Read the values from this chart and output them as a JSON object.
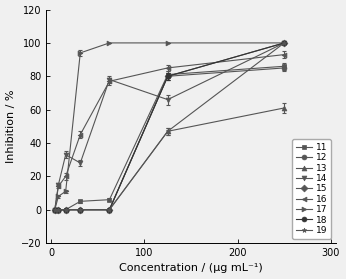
{
  "title": "",
  "xlabel": "Concentration / (μg mL⁻¹)",
  "ylabel": "Inhibition / %",
  "xlim": [
    -5,
    305
  ],
  "ylim": [
    -20,
    120
  ],
  "xticks": [
    0,
    100,
    200,
    300
  ],
  "yticks": [
    -20,
    0,
    20,
    40,
    60,
    80,
    100,
    120
  ],
  "series": [
    {
      "label": "11",
      "marker": "s",
      "color": "#555555",
      "x": [
        3.9,
        7.8,
        15.6,
        31.25,
        62.5,
        125,
        250
      ],
      "y": [
        0,
        0,
        0,
        5,
        6,
        81,
        86
      ],
      "yerr": [
        0,
        0,
        0,
        1,
        1,
        2,
        2
      ]
    },
    {
      "label": "12",
      "marker": "o",
      "color": "#555555",
      "x": [
        3.9,
        7.8,
        15.6,
        31.25,
        62.5,
        125,
        250
      ],
      "y": [
        0,
        0,
        0,
        0,
        0,
        80,
        85
      ],
      "yerr": [
        0,
        0,
        0,
        0,
        0,
        2,
        2
      ]
    },
    {
      "label": "13",
      "marker": "^",
      "color": "#555555",
      "x": [
        3.9,
        7.8,
        15.6,
        31.25,
        62.5,
        125,
        250
      ],
      "y": [
        0,
        0,
        0,
        0,
        0,
        47,
        61
      ],
      "yerr": [
        0,
        0,
        0,
        0,
        0,
        2,
        3
      ]
    },
    {
      "label": "14",
      "marker": "v",
      "color": "#555555",
      "x": [
        3.9,
        7.8,
        15.6,
        31.25,
        62.5,
        125,
        250
      ],
      "y": [
        0,
        15,
        33,
        28,
        78,
        66,
        100
      ],
      "yerr": [
        0,
        1,
        2,
        2,
        2,
        3,
        0
      ]
    },
    {
      "label": "15",
      "marker": "D",
      "color": "#555555",
      "x": [
        3.9,
        7.8,
        15.6,
        31.25,
        62.5,
        125,
        250
      ],
      "y": [
        0,
        0,
        0,
        0,
        0,
        80,
        100
      ],
      "yerr": [
        0,
        0,
        0,
        0,
        0,
        2,
        0
      ]
    },
    {
      "label": "16",
      "marker": "<",
      "color": "#555555",
      "x": [
        3.9,
        7.8,
        15.6,
        31.25,
        62.5,
        125,
        250
      ],
      "y": [
        0,
        14,
        20,
        45,
        77,
        85,
        93
      ],
      "yerr": [
        0,
        1,
        2,
        2,
        2,
        2,
        2
      ]
    },
    {
      "label": "17",
      "marker": ">",
      "color": "#555555",
      "x": [
        3.9,
        7.8,
        15.6,
        31.25,
        62.5,
        125,
        250
      ],
      "y": [
        0,
        8,
        11,
        94,
        100,
        100,
        100
      ],
      "yerr": [
        0,
        1,
        1,
        2,
        0,
        0,
        0
      ]
    },
    {
      "label": "18",
      "marker": "o",
      "color": "#333333",
      "x": [
        3.9,
        7.8,
        15.6,
        31.25,
        62.5,
        125,
        250
      ],
      "y": [
        0,
        0,
        0,
        0,
        0,
        80,
        100
      ],
      "yerr": [
        0,
        0,
        0,
        0,
        0,
        2,
        0
      ]
    },
    {
      "label": "19",
      "marker": "*",
      "color": "#555555",
      "x": [
        3.9,
        7.8,
        15.6,
        31.25,
        62.5,
        125,
        250
      ],
      "y": [
        0,
        0,
        0,
        0,
        0,
        47,
        100
      ],
      "yerr": [
        0,
        0,
        0,
        0,
        0,
        2,
        0
      ]
    }
  ],
  "background_color": "#f0f0f0",
  "grid": false,
  "legend_fontsize": 6.5,
  "tick_fontsize": 7,
  "label_fontsize": 8
}
